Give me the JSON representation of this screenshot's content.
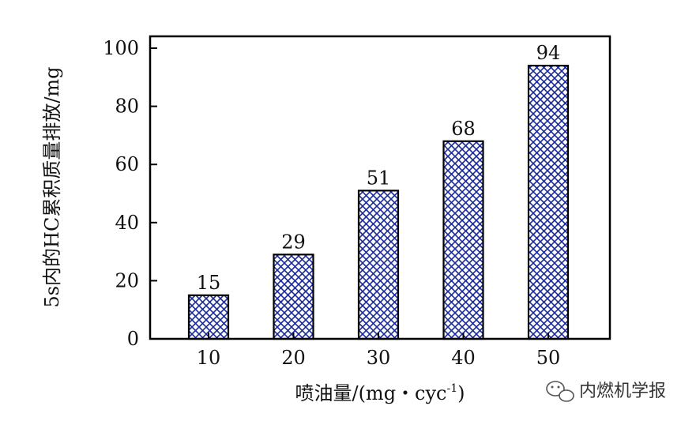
{
  "chart_data": {
    "type": "bar",
    "categories": [
      "10",
      "20",
      "30",
      "40",
      "50"
    ],
    "values": [
      15,
      29,
      51,
      68,
      94
    ],
    "data_labels": [
      "15",
      "29",
      "51",
      "68",
      "94"
    ],
    "title": "",
    "xlabel": "喷油量/(mg・cyc",
    "xlabel_sup": "-1",
    "xlabel_close": ")",
    "ylabel": "5s内的HC累积质量排放/mg",
    "ylim": [
      0,
      100
    ],
    "yticks": [
      "0",
      "20",
      "40",
      "60",
      "80",
      "100"
    ],
    "yticks_values": [
      0,
      20,
      40,
      60,
      80,
      100
    ],
    "grid": false,
    "legend": "none",
    "bar_fill": "crosshatch",
    "colors": {
      "hatch": "#1a2a9a",
      "bar_edge": "#000000",
      "axis": "#000000"
    }
  },
  "watermark": {
    "icon": "wechat-icon",
    "text": "内燃机学报"
  }
}
